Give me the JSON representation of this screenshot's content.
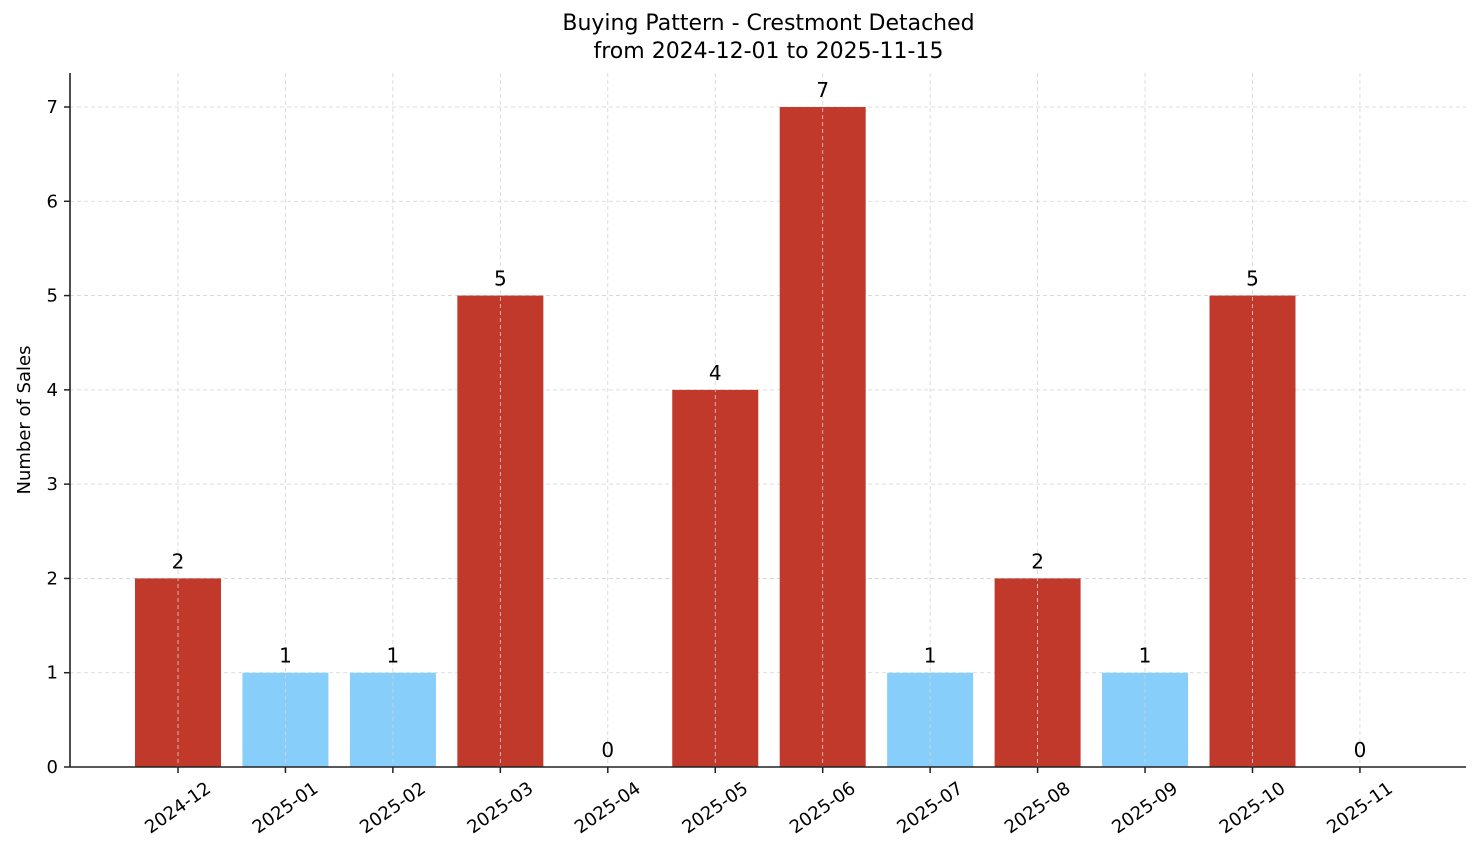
{
  "chart_data": {
    "type": "bar",
    "title": "Buying Pattern - Crestmont Detached",
    "subtitle": "from 2024-12-01 to 2025-11-15",
    "xlabel": "",
    "ylabel": "Number of Sales",
    "categories": [
      "2024-12",
      "2025-01",
      "2025-02",
      "2025-03",
      "2025-04",
      "2025-05",
      "2025-06",
      "2025-07",
      "2025-08",
      "2025-09",
      "2025-10",
      "2025-11"
    ],
    "values": [
      2,
      1,
      1,
      5,
      0,
      4,
      7,
      1,
      2,
      1,
      5,
      0
    ],
    "bar_colors": [
      "#c0392b",
      "#87cefa",
      "#87cefa",
      "#c0392b",
      "#c0392b",
      "#c0392b",
      "#c0392b",
      "#87cefa",
      "#c0392b",
      "#87cefa",
      "#c0392b",
      "#c0392b"
    ],
    "ylim": [
      0,
      7.35
    ],
    "yticks": [
      0,
      1,
      2,
      3,
      4,
      5,
      6,
      7
    ],
    "grid": true,
    "legend": null,
    "data_labels": true
  },
  "colors": {
    "high": "#c0392b",
    "low": "#87cefa",
    "grid": "#d3d3d3",
    "axis": "#222222"
  }
}
